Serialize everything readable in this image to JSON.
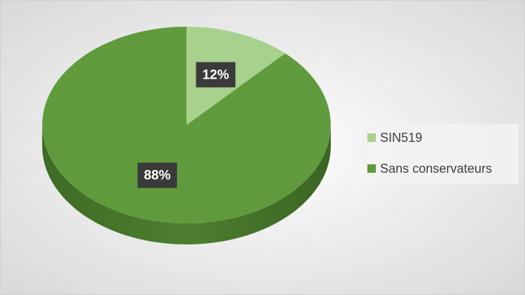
{
  "chart_data": {
    "type": "pie",
    "categories": [
      "SIN519",
      "Sans conservateurs"
    ],
    "values": [
      12,
      88
    ],
    "value_labels": [
      "12%",
      "88%"
    ],
    "colors": [
      "#a9d18e",
      "#5f9b3c"
    ]
  }
}
